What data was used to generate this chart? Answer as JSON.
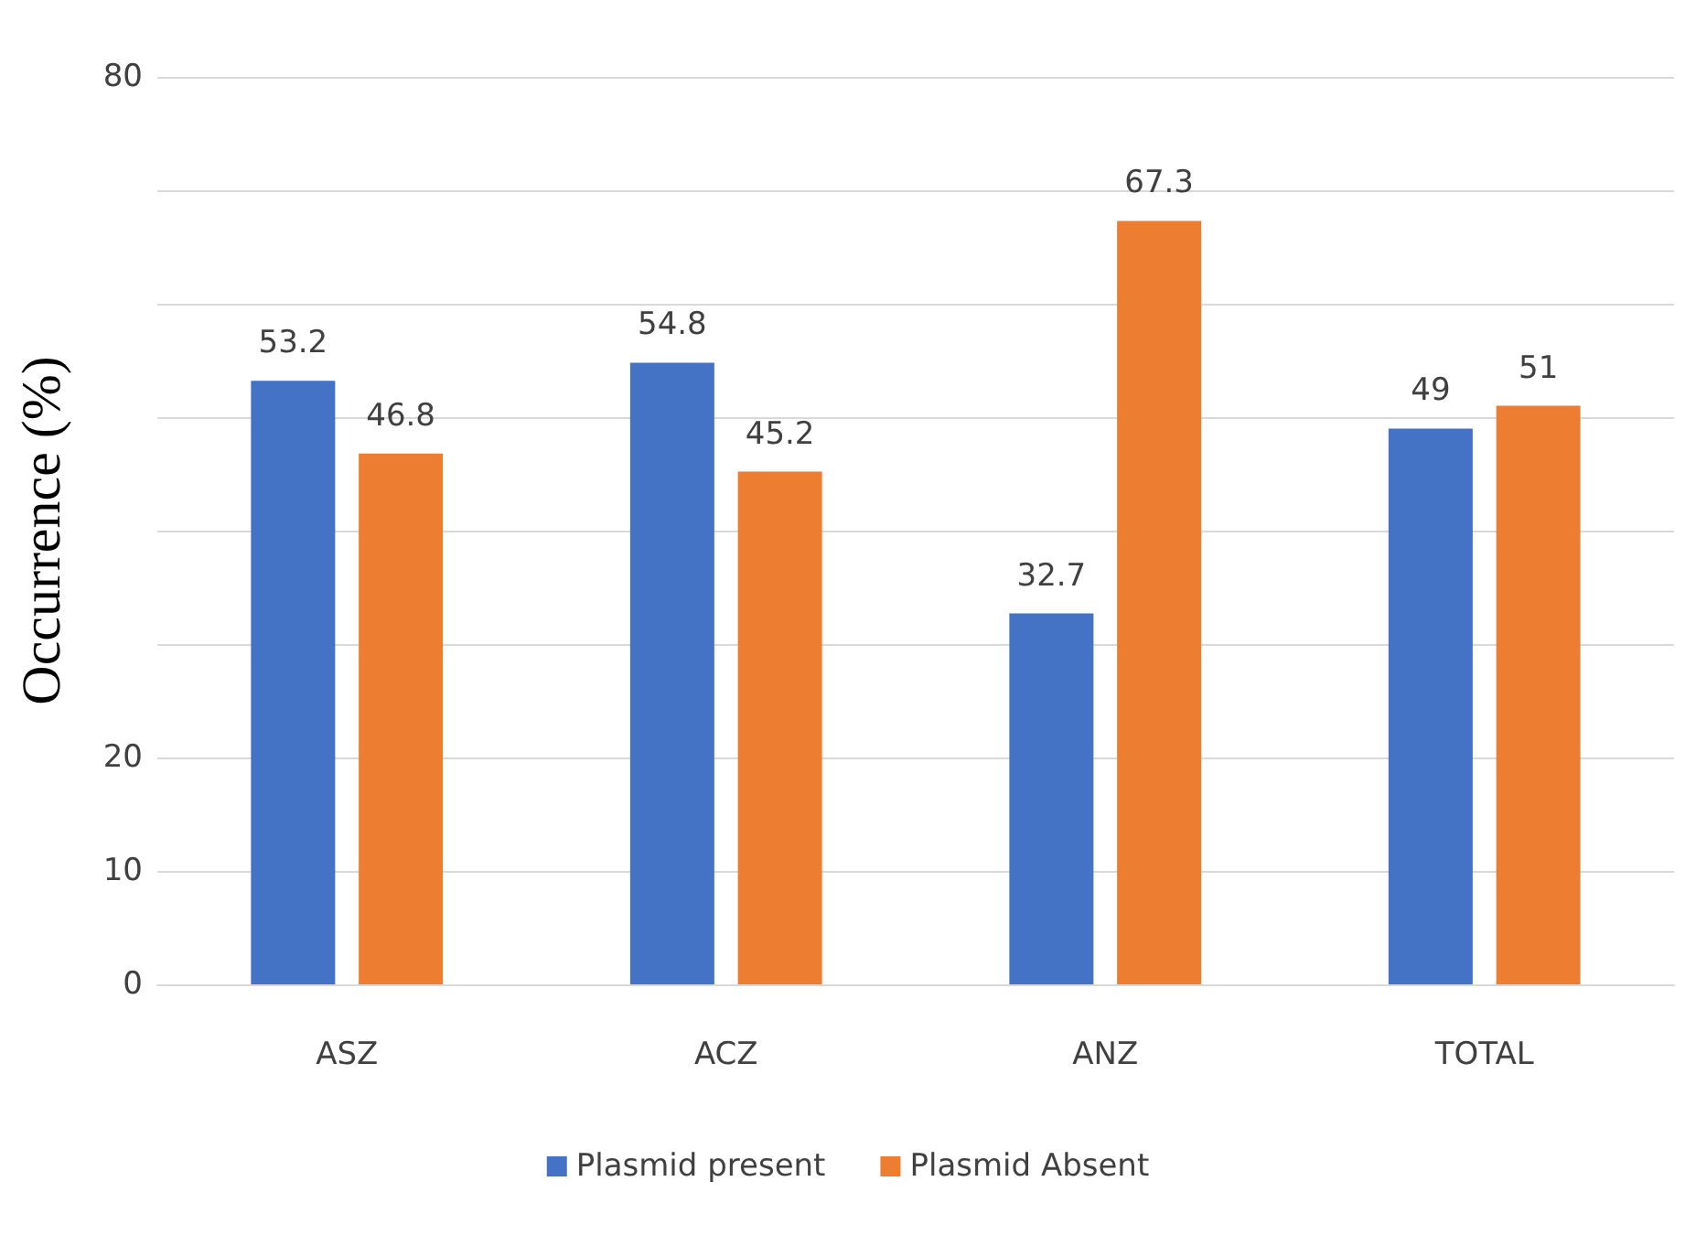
{
  "chart_data": {
    "type": "bar",
    "ylabel": "Occurrence (%)",
    "categories": [
      "ASZ",
      "ACZ",
      "ANZ",
      "TOTAL"
    ],
    "series": [
      {
        "name": "Plasmid present",
        "color": "#4472c4",
        "values": [
          53.2,
          54.8,
          32.7,
          49
        ]
      },
      {
        "name": "Plasmid Absent",
        "color": "#ed7d31",
        "values": [
          46.8,
          45.2,
          67.3,
          51
        ]
      }
    ],
    "ylim": [
      0,
      80
    ],
    "yticks": [
      0,
      10,
      20,
      {
        "value": 30,
        "label": null
      },
      {
        "value": 40,
        "label": null
      },
      {
        "value": 50,
        "label": null
      },
      {
        "value": 60,
        "label": null
      },
      {
        "value": 70,
        "label": null
      },
      80
    ],
    "grid": "y",
    "legend": "bottom",
    "data_labels": true
  }
}
